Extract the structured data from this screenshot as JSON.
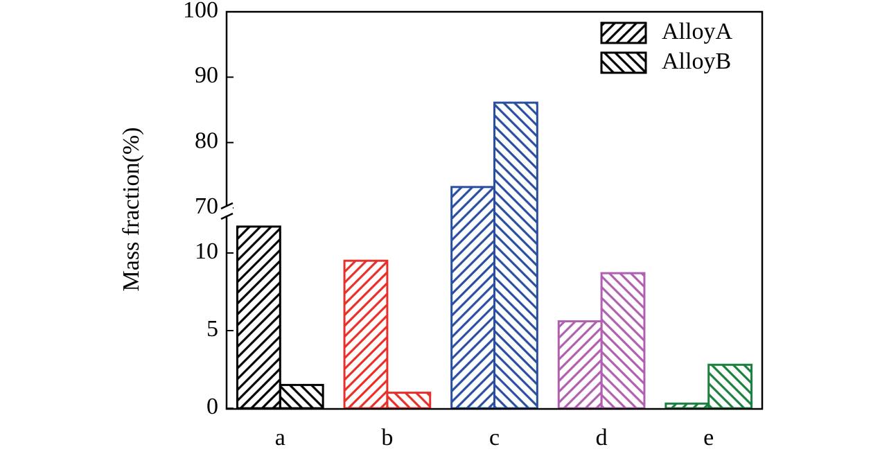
{
  "chart_data": {
    "type": "bar",
    "y_label": "Mass fraction(%)",
    "categories": [
      "a",
      "b",
      "c",
      "d",
      "e"
    ],
    "category_colors": [
      "#000000",
      "#e8302a",
      "#2a4fa0",
      "#b060b0",
      "#1e8040"
    ],
    "series": [
      {
        "name": "AlloyA",
        "hatch": "/",
        "color": "#000000",
        "values": [
          11.7,
          9.5,
          73.2,
          5.6,
          0.3
        ]
      },
      {
        "name": "AlloyB",
        "hatch": "\\",
        "color": "#000000",
        "values": [
          1.5,
          1.0,
          86.1,
          8.7,
          2.8
        ]
      }
    ],
    "ylim_segments": [
      [
        0,
        12.5
      ],
      [
        70,
        100
      ]
    ],
    "yticks": [
      0,
      5,
      10,
      70,
      80,
      90,
      100
    ],
    "legend": "upper right"
  }
}
